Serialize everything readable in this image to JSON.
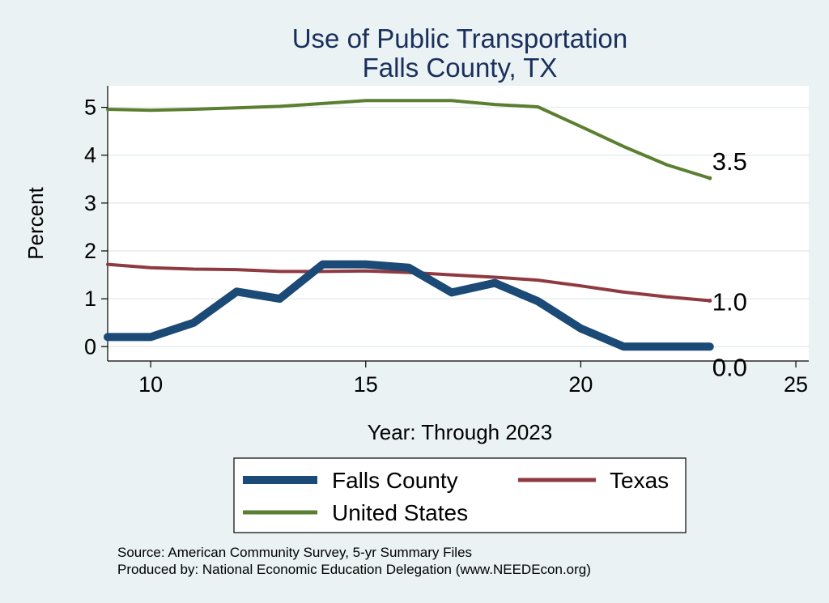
{
  "chart_data": {
    "type": "line",
    "title": "Use of Public Transportation",
    "subtitle": "Falls County, TX",
    "xlabel": "Year: Through 2023",
    "ylabel": "Percent",
    "xlim": [
      9,
      25.3
    ],
    "ylim": [
      -0.3,
      5.45
    ],
    "xticks": [
      10,
      15,
      20,
      25
    ],
    "yticks": [
      0,
      1,
      2,
      3,
      4,
      5
    ],
    "grid": true,
    "legend_position": "bottom",
    "series": [
      {
        "name": "Falls County",
        "color": "#1a4a75",
        "width": 10,
        "x": [
          9,
          10,
          11,
          12,
          13,
          14,
          15,
          16,
          17,
          18,
          19,
          20,
          21,
          22,
          23
        ],
        "y": [
          0.2,
          0.2,
          0.5,
          1.15,
          1.0,
          1.72,
          1.72,
          1.65,
          1.13,
          1.33,
          0.95,
          0.38,
          0.0,
          0.0,
          0.0
        ],
        "end_label": "0.0"
      },
      {
        "name": "Texas",
        "color": "#8f3a40",
        "width": 4,
        "x": [
          9,
          10,
          11,
          12,
          13,
          14,
          15,
          16,
          17,
          18,
          19,
          20,
          21,
          22,
          23
        ],
        "y": [
          1.72,
          1.65,
          1.62,
          1.61,
          1.57,
          1.57,
          1.58,
          1.55,
          1.5,
          1.45,
          1.39,
          1.27,
          1.14,
          1.04,
          0.96
        ],
        "end_label": "1.0"
      },
      {
        "name": "United States",
        "color": "#5a7f30",
        "width": 4,
        "x": [
          9,
          10,
          11,
          12,
          13,
          14,
          15,
          16,
          17,
          18,
          19,
          20,
          21,
          22,
          23
        ],
        "y": [
          4.96,
          4.94,
          4.96,
          4.99,
          5.02,
          5.08,
          5.14,
          5.14,
          5.14,
          5.06,
          5.01,
          4.6,
          4.18,
          3.8,
          3.52
        ],
        "end_label": "3.5"
      }
    ],
    "notes": [
      "Source: American Community Survey, 5-yr Summary Files",
      "Produced by: National Economic Education Delegation (www.NEEDEcon.org)"
    ]
  }
}
